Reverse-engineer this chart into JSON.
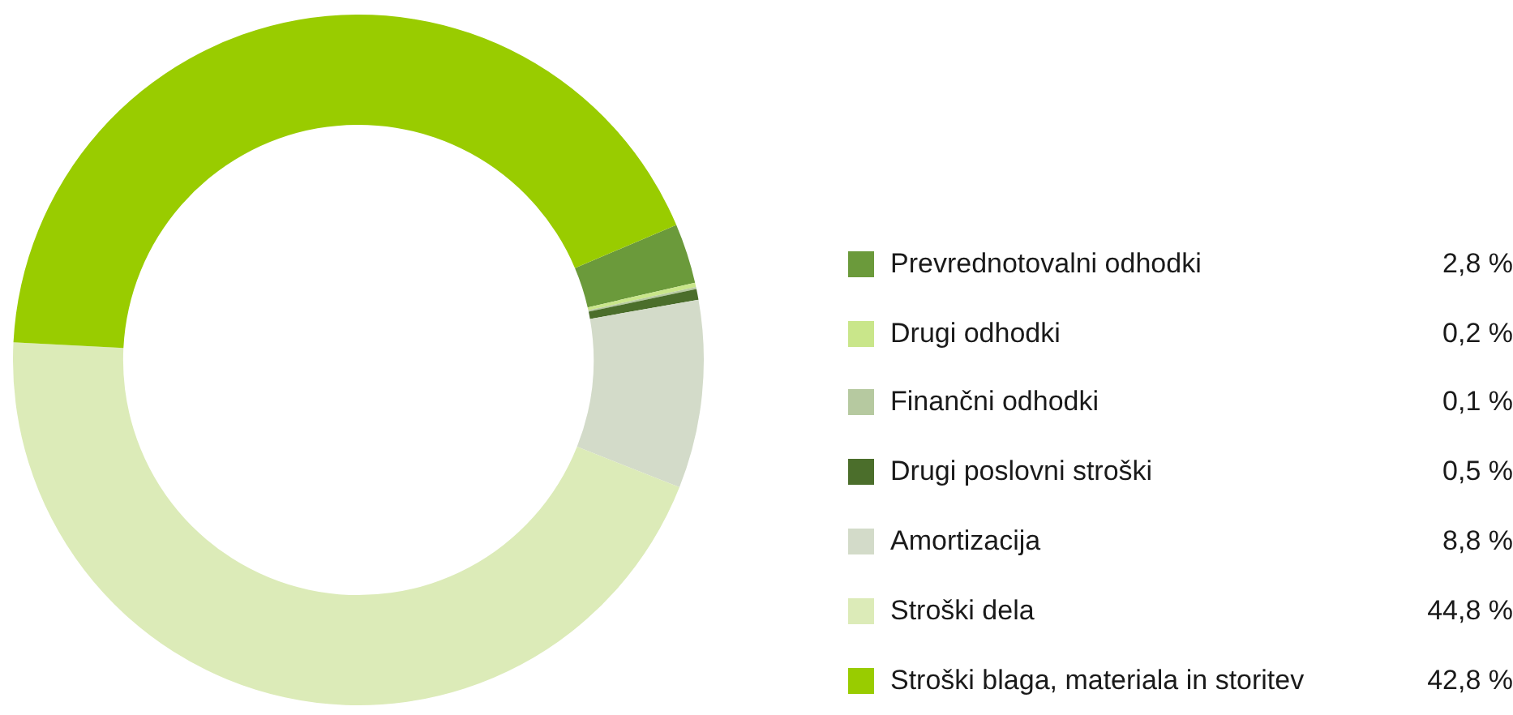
{
  "chart_data": {
    "type": "donut",
    "categories": [
      "Prevrednotovalni odhodki",
      "Drugi odhodki",
      "Finančni odhodki",
      "Drugi poslovni stroški",
      "Amortizacija",
      "Stroški dela",
      "Stroški blaga, materiala in storitev"
    ],
    "values": [
      2.8,
      0.2,
      0.1,
      0.5,
      8.8,
      44.8,
      42.8
    ],
    "value_labels": [
      "2,8 %",
      "0,2 %",
      "0,1 %",
      "0,5 %",
      "8,8 %",
      "44,8 %",
      "42,8 %"
    ],
    "colors": [
      "#6b9a3b",
      "#c9e68a",
      "#b6c9a0",
      "#4b6e2b",
      "#d3dbc9",
      "#dcebb8",
      "#99cc00"
    ],
    "legend": "right"
  }
}
